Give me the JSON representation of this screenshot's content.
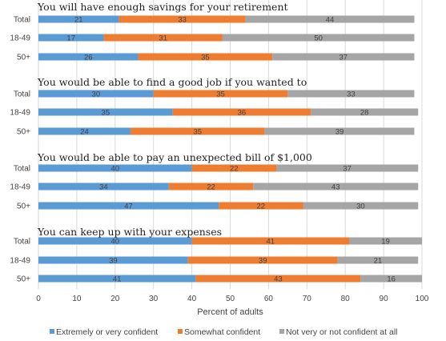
{
  "chart_data": {
    "type": "bar",
    "orientation": "horizontal",
    "stacked": true,
    "xlabel": "Percent of adults",
    "xlim": [
      0,
      100
    ],
    "xticks": [
      "0",
      "10",
      "20",
      "30",
      "40",
      "50",
      "60",
      "70",
      "80",
      "90",
      "100"
    ],
    "grid": true,
    "legend_position": "bottom",
    "series": [
      {
        "name": "Extremely or very confident",
        "color": "#5b9bd5"
      },
      {
        "name": "Somewhat confident",
        "color": "#ed7d31"
      },
      {
        "name": "Not very or not confident at all",
        "color": "#a5a5a5"
      }
    ],
    "groups": [
      {
        "title": "You will have enough savings for your retirement",
        "rows": [
          {
            "label": "Total",
            "values": [
              21,
              33,
              44
            ]
          },
          {
            "label": "18-49",
            "values": [
              17,
              31,
              50
            ]
          },
          {
            "label": "50+",
            "values": [
              26,
              35,
              37
            ]
          }
        ]
      },
      {
        "title": "You would be able to find a good job if you wanted to",
        "rows": [
          {
            "label": "Total",
            "values": [
              30,
              35,
              33
            ]
          },
          {
            "label": "18-49",
            "values": [
              35,
              36,
              28
            ]
          },
          {
            "label": "50+",
            "values": [
              24,
              35,
              39
            ]
          }
        ]
      },
      {
        "title": "You would be able to pay an unexpected bill of $1,000",
        "rows": [
          {
            "label": "Total",
            "values": [
              40,
              22,
              37
            ]
          },
          {
            "label": "18-49",
            "values": [
              34,
              22,
              43
            ]
          },
          {
            "label": "50+",
            "values": [
              47,
              22,
              30
            ]
          }
        ]
      },
      {
        "title": "You can keep up with your expenses",
        "rows": [
          {
            "label": "Total",
            "values": [
              40,
              41,
              19
            ]
          },
          {
            "label": "18-49",
            "values": [
              39,
              39,
              21
            ]
          },
          {
            "label": "50+",
            "values": [
              41,
              43,
              16
            ]
          }
        ]
      }
    ]
  }
}
